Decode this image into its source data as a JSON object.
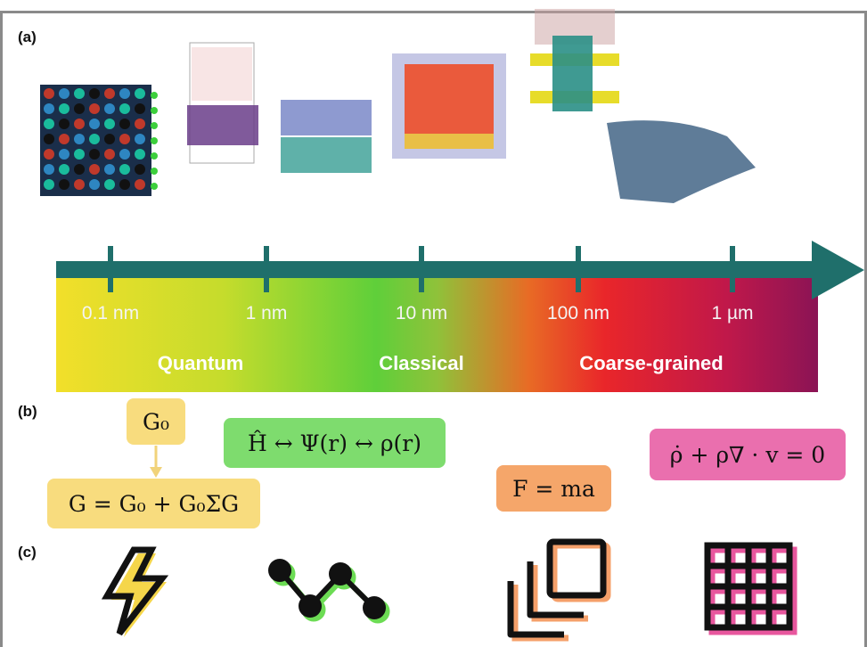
{
  "panels": {
    "a": "(a)",
    "b": "(b)",
    "c": "(c)"
  },
  "scale": {
    "ticks": [
      "0.1 nm",
      "1 nm",
      "10 nm",
      "100 nm",
      "1 µm"
    ],
    "regimes": [
      "Quantum",
      "Classical",
      "Coarse-grained"
    ]
  },
  "equations": {
    "g0": "G₀",
    "dyson": "G = G₀ + G₀ΣG",
    "dft": "Ĥ ↔ Ψ(r) ↔ ρ(r)",
    "newton": "F = ma",
    "continuity": "ρ̇ + ρ∇ · v = 0"
  },
  "colors": {
    "axis": "#1f6f6b",
    "quantum_box": "#f8dc7e",
    "dft_box": "#7edc6e",
    "newton_box": "#f5a66a",
    "continuity_box": "#ea6fae"
  },
  "icons": [
    "lightning-icon",
    "molecule-chain-icon",
    "stacked-squares-icon",
    "grid-mesh-icon"
  ]
}
